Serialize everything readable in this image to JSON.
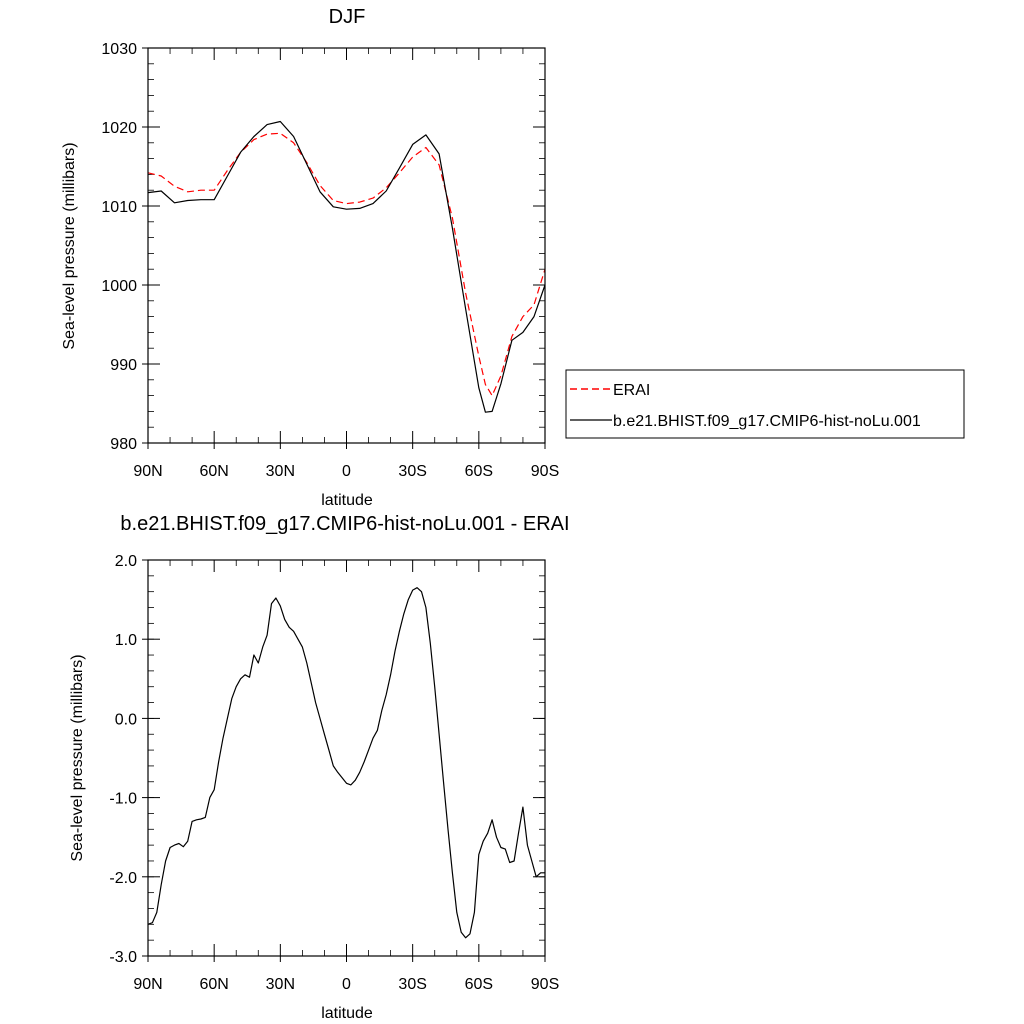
{
  "chart_data": [
    {
      "type": "line",
      "title": "DJF",
      "xlabel": "latitude",
      "ylabel": "Sea-level pressure (millibars)",
      "xlim": [
        90,
        -90
      ],
      "ylim": [
        980,
        1030
      ],
      "xticks": [
        90,
        60,
        30,
        0,
        -30,
        -60,
        -90
      ],
      "xtick_labels": [
        "90N",
        "60N",
        "30N",
        "0",
        "30S",
        "60S",
        "90S"
      ],
      "yticks": [
        980,
        990,
        1000,
        1010,
        1020,
        1030
      ],
      "ytick_labels": [
        "980",
        "990",
        "1000",
        "1010",
        "1020",
        "1030"
      ],
      "legend_position": "right",
      "series": [
        {
          "name": "ERAI",
          "color": "#ff0000",
          "style": "dashed",
          "x": [
            90,
            84,
            78,
            72,
            66,
            60,
            54,
            48,
            42,
            36,
            30,
            24,
            18,
            12,
            6,
            0,
            -6,
            -12,
            -18,
            -24,
            -30,
            -36,
            -42,
            -48,
            -54,
            -60,
            -63,
            -66,
            -70,
            -75,
            -80,
            -85,
            -90
          ],
          "y": [
            1014.2,
            1013.8,
            1012.5,
            1011.8,
            1012.0,
            1012.0,
            1014.5,
            1016.8,
            1018.4,
            1019.1,
            1019.2,
            1018.0,
            1015.5,
            1012.6,
            1010.7,
            1010.3,
            1010.5,
            1011.0,
            1012.3,
            1014.2,
            1016.2,
            1017.4,
            1015.2,
            1008.5,
            999.0,
            991.0,
            987.4,
            986.0,
            988.5,
            993.5,
            996.0,
            997.5,
            1002.0
          ]
        },
        {
          "name": "b.e21.BHIST.f09_g17.CMIP6-hist-noLu.001",
          "color": "#000000",
          "style": "solid",
          "x": [
            90,
            84,
            78,
            72,
            66,
            60,
            54,
            48,
            42,
            36,
            30,
            24,
            18,
            12,
            6,
            0,
            -6,
            -12,
            -18,
            -24,
            -30,
            -36,
            -42,
            -48,
            -54,
            -60,
            -63,
            -66,
            -70,
            -75,
            -80,
            -85,
            -90
          ],
          "y": [
            1011.7,
            1011.9,
            1010.4,
            1010.7,
            1010.8,
            1010.8,
            1013.8,
            1016.8,
            1018.8,
            1020.3,
            1020.7,
            1018.8,
            1015.3,
            1011.8,
            1009.9,
            1009.6,
            1009.7,
            1010.3,
            1011.9,
            1014.8,
            1017.8,
            1019.0,
            1016.6,
            1007.2,
            997.0,
            987.0,
            983.9,
            984.0,
            987.5,
            993.0,
            994.0,
            996.0,
            1000.0
          ]
        }
      ]
    },
    {
      "type": "line",
      "title": "b.e21.BHIST.f09_g17.CMIP6-hist-noLu.001 - ERAI",
      "xlabel": "latitude",
      "ylabel": "Sea-level pressure (millibars)",
      "xlim": [
        90,
        -90
      ],
      "ylim": [
        -3.0,
        2.0
      ],
      "xticks": [
        90,
        60,
        30,
        0,
        -30,
        -60,
        -90
      ],
      "xtick_labels": [
        "90N",
        "60N",
        "30N",
        "0",
        "30S",
        "60S",
        "90S"
      ],
      "yticks": [
        -3.0,
        -2.0,
        -1.0,
        0.0,
        1.0,
        2.0
      ],
      "ytick_labels": [
        "-3.0",
        "-2.0",
        "-1.0",
        "0.0",
        "1.0",
        "2.0"
      ],
      "series": [
        {
          "color": "#000000",
          "style": "solid",
          "x": [
            90,
            88,
            86,
            84,
            82,
            80,
            78,
            76,
            74,
            72,
            70,
            68,
            66,
            64,
            62,
            60,
            58,
            56,
            54,
            52,
            50,
            48,
            46,
            44,
            42,
            40,
            38,
            36,
            34,
            32,
            30,
            28,
            26,
            24,
            22,
            20,
            18,
            16,
            14,
            12,
            10,
            8,
            6,
            4,
            2,
            0,
            -2,
            -4,
            -6,
            -8,
            -10,
            -12,
            -14,
            -16,
            -18,
            -20,
            -22,
            -24,
            -26,
            -28,
            -30,
            -32,
            -34,
            -36,
            -38,
            -40,
            -42,
            -44,
            -46,
            -48,
            -50,
            -52,
            -54,
            -56,
            -58,
            -60,
            -62,
            -64,
            -66,
            -68,
            -70,
            -72,
            -74,
            -76,
            -78,
            -80,
            -82,
            -84,
            -86,
            -88,
            -90
          ],
          "y": [
            -2.6,
            -2.58,
            -2.45,
            -2.1,
            -1.8,
            -1.63,
            -1.6,
            -1.58,
            -1.62,
            -1.55,
            -1.3,
            -1.28,
            -1.27,
            -1.25,
            -1.0,
            -0.9,
            -0.55,
            -0.25,
            0.0,
            0.25,
            0.4,
            0.5,
            0.55,
            0.52,
            0.8,
            0.7,
            0.9,
            1.05,
            1.45,
            1.52,
            1.42,
            1.25,
            1.15,
            1.1,
            1.0,
            0.9,
            0.7,
            0.45,
            0.2,
            0.0,
            -0.2,
            -0.4,
            -0.6,
            -0.68,
            -0.75,
            -0.82,
            -0.84,
            -0.78,
            -0.68,
            -0.55,
            -0.4,
            -0.25,
            -0.15,
            0.1,
            0.3,
            0.55,
            0.85,
            1.1,
            1.32,
            1.5,
            1.62,
            1.65,
            1.6,
            1.4,
            0.95,
            0.4,
            -0.2,
            -0.8,
            -1.4,
            -1.95,
            -2.45,
            -2.7,
            -2.77,
            -2.72,
            -2.45,
            -1.72,
            -1.55,
            -1.45,
            -1.28,
            -1.5,
            -1.63,
            -1.65,
            -1.82,
            -1.8,
            -1.45,
            -1.12,
            -1.6,
            -1.8,
            -2.0,
            -1.95,
            -1.95
          ]
        }
      ]
    }
  ]
}
